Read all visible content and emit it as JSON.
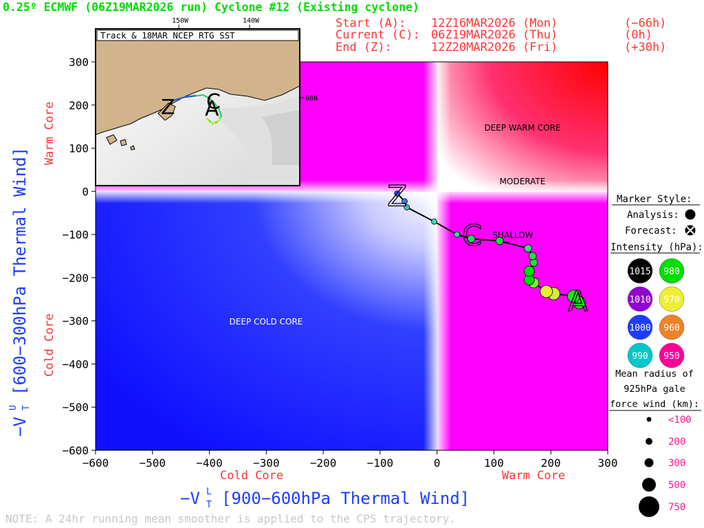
{
  "header": {
    "title": "0.25º ECMWF (06Z19MAR2026 run) Cyclone #12 (Existing cyclone)",
    "start_label": "Start (A):",
    "start_value": "12Z16MAR2026 (Mon)",
    "start_offset": "(−66h)",
    "current_label": "Current (C):",
    "current_value": "06Z19MAR2026 (Thu)",
    "current_offset": "(0h)",
    "end_label": "End (Z):",
    "end_value": "12Z20MAR2026 (Fri)",
    "end_offset": "(+30h)"
  },
  "inset": {
    "title": "Track & 18MAR NCEP RTG SST",
    "lon_labels": [
      "150W",
      "140W"
    ],
    "lat_label": "60N"
  },
  "regions": {
    "deep_warm": "DEEP WARM CORE",
    "moderate": "MODERATE",
    "shallow": "SHALLOW",
    "deep_cold": "DEEP COLD CORE"
  },
  "axes": {
    "y_label": "−V",
    "y_sup": "U",
    "y_sub": "T",
    "y_bracket": "[600−300hPa Thermal Wind]",
    "x_label": "−V",
    "x_sup": "L",
    "x_sub": "T",
    "x_bracket": "[900−600hPa Thermal Wind]",
    "y_warm": "Warm Core",
    "y_cold": "Cold Core",
    "x_cold": "Cold Core",
    "x_warm": "Warm Core"
  },
  "legend": {
    "marker_style": "Marker Style:",
    "analysis": "Analysis:",
    "forecast": "Forecast:",
    "intensity": "Intensity (hPa):",
    "intensity_levels": [
      {
        "label": "1015",
        "color": "#000000"
      },
      {
        "label": "980",
        "color": "#00dd00"
      },
      {
        "label": "1010",
        "color": "#9400d3"
      },
      {
        "label": "970",
        "color": "#eeee33"
      },
      {
        "label": "1000",
        "color": "#1e3cff"
      },
      {
        "label": "960",
        "color": "#f08228"
      },
      {
        "label": "990",
        "color": "#00c8c8"
      },
      {
        "label": "950",
        "color": "#ff0096"
      }
    ],
    "radius_title_1": "Mean radius of",
    "radius_title_2": "925hPa gale",
    "radius_title_3": "force wind (km):",
    "radius_levels": [
      "<100",
      "200",
      "300",
      "500",
      "750"
    ]
  },
  "note": "NOTE: A 24hr running mean smoother is applied to the CPS trajectory.",
  "colors": {
    "title": "#00dd00",
    "header_info": "#ff3333",
    "axis_blue": "#1e3cff",
    "red_label": "#ff3333",
    "magenta": "#ff1493"
  },
  "chart_data": {
    "type": "scatter",
    "xlabel": "−VTL [900−600hPa Thermal Wind]",
    "ylabel": "−VTU [600−300hPa Thermal Wind]",
    "xlim": [
      -600,
      300
    ],
    "ylim": [
      -600,
      300
    ],
    "x_ticks": [
      -600,
      -500,
      -400,
      -300,
      -200,
      -100,
      0,
      100,
      200,
      300
    ],
    "y_ticks": [
      -600,
      -500,
      -400,
      -300,
      -200,
      -100,
      0,
      100,
      200,
      300
    ],
    "x": [
      250,
      240,
      205,
      192,
      170,
      162,
      162,
      170,
      168,
      160,
      110,
      60,
      35,
      -5,
      -53,
      -57,
      -70
    ],
    "y": [
      -258,
      -243,
      -237,
      -232,
      -212,
      -205,
      -185,
      -165,
      -150,
      -132,
      -115,
      -110,
      -100,
      -70,
      -37,
      -23,
      -5
    ],
    "pressure_hPa": [
      975,
      975,
      970,
      970,
      975,
      980,
      980,
      980,
      980,
      985,
      982,
      982,
      985,
      988,
      990,
      995,
      1000
    ],
    "colors": [
      "#22dd22",
      "#22dd22",
      "#d0ee33",
      "#e8ee33",
      "#7aee33",
      "#00dd00",
      "#00dd00",
      "#22dd44",
      "#22dd44",
      "#33dd77",
      "#22dd44",
      "#22dd44",
      "#33ddaa",
      "#33ddbb",
      "#44bbdd",
      "#4477ee",
      "#3355ee"
    ],
    "sizes_km": [
      500,
      500,
      500,
      500,
      300,
      300,
      300,
      200,
      200,
      200,
      200,
      200,
      100,
      100,
      100,
      100,
      100
    ],
    "markers": {
      "start": "A",
      "current": "C",
      "end": "Z"
    },
    "grid": false
  }
}
